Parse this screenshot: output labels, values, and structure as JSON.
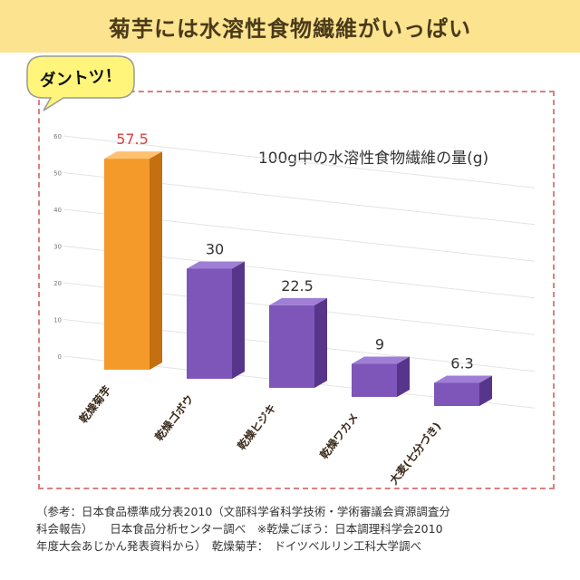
{
  "banner": {
    "title": "菊芋には水溶性食物繊維がいっぱい"
  },
  "badge": {
    "text": "ダントツ！"
  },
  "chart_data": {
    "type": "bar",
    "title": "100g中の水溶性食物繊維の量(g)",
    "categories": [
      "乾燥菊芋",
      "乾燥ゴボウ",
      "乾燥ヒジキ",
      "乾燥ワカメ",
      "大麦(七分づき)"
    ],
    "values": [
      57.5,
      30,
      22.5,
      9,
      6.3
    ],
    "value_labels": [
      "57.5",
      "30",
      "22.5",
      "9",
      "6.3"
    ],
    "y_ticks": [
      "0",
      "10",
      "20",
      "30",
      "40",
      "50",
      "60"
    ],
    "ylim": [
      0,
      60
    ],
    "colors": {
      "highlight": "#f39a2b",
      "default": "#7e55b8"
    },
    "grid": true
  },
  "footnote": {
    "lines": [
      "（参考：日本食品標準成分表2010（文部科学省科学技術・学術審議会資源調査分",
      "科会報告）　　日本食品分析センター調べ　※乾燥ごぼう：日本調理科学会2010",
      "年度大会あじかん発表資料から）　乾燥菊芋：　ドイツベルリン工科大学調べ"
    ]
  }
}
